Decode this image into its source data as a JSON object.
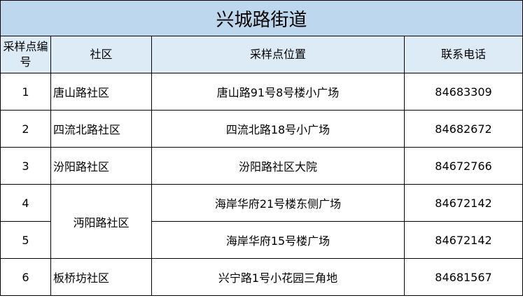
{
  "title": "兴城路街道",
  "headers": {
    "no": "采样点编号",
    "community": "社区",
    "location": "采样点位置",
    "phone": "联系电话"
  },
  "rows": [
    {
      "no": "1",
      "community": "唐山路社区",
      "location": "唐山路91号8号楼小广场",
      "phone": "84683309"
    },
    {
      "no": "2",
      "community": "四流北路社区",
      "location": "四流北路18号小广场",
      "phone": "84682672"
    },
    {
      "no": "3",
      "community": "汾阳路社区",
      "location": "汾阳路社区大院",
      "phone": "84672766"
    },
    {
      "no": "4",
      "community": "沔阳路社区",
      "location": "海岸华府21号楼东侧广场",
      "phone": "84672142"
    },
    {
      "no": "5",
      "community": "",
      "location": "海岸华府15号楼广场",
      "phone": "84672142"
    },
    {
      "no": "6",
      "community": "板桥坊社区",
      "location": "兴宁路1号小花园三角地",
      "phone": "84681567"
    }
  ]
}
